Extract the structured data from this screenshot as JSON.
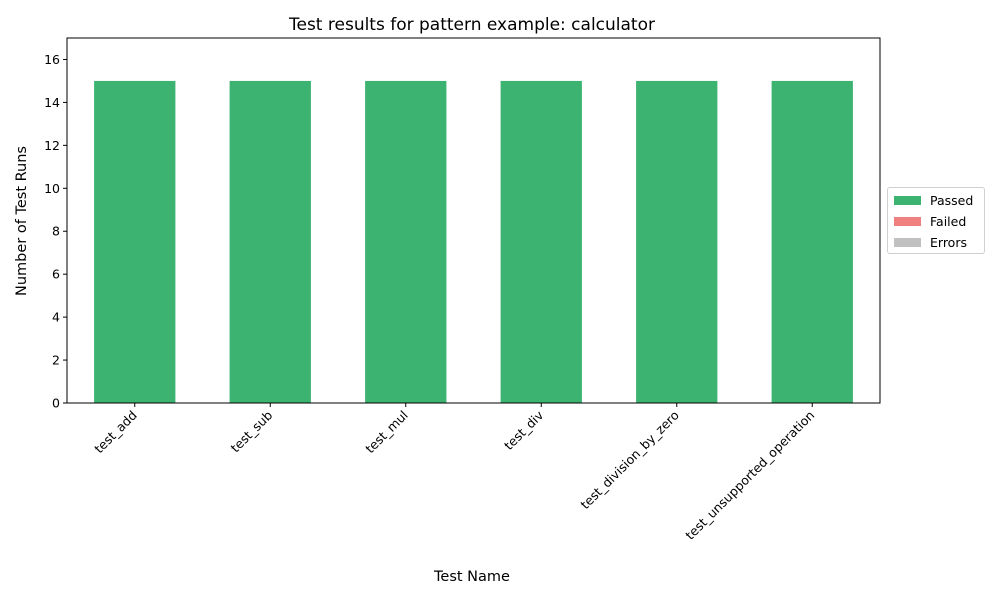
{
  "chart_data": {
    "type": "bar",
    "stacked": true,
    "title": "Test results for pattern example: calculator",
    "xlabel": "Test Name",
    "ylabel": "Number of Test Runs",
    "categories": [
      "test_add",
      "test_sub",
      "test_mul",
      "test_div",
      "test_division_by_zero",
      "test_unsupported_operation"
    ],
    "series": [
      {
        "name": "Passed",
        "color": "#3cb371",
        "values": [
          15,
          15,
          15,
          15,
          15,
          15
        ]
      },
      {
        "name": "Failed",
        "color": "#f08080",
        "values": [
          0,
          0,
          0,
          0,
          0,
          0
        ]
      },
      {
        "name": "Errors",
        "color": "#c0c0c0",
        "values": [
          0,
          0,
          0,
          0,
          0,
          0
        ]
      }
    ],
    "ylim": [
      0,
      17
    ],
    "yticks": [
      0,
      2,
      4,
      6,
      8,
      10,
      12,
      14,
      16
    ],
    "grid": false,
    "legend_position": "right"
  }
}
